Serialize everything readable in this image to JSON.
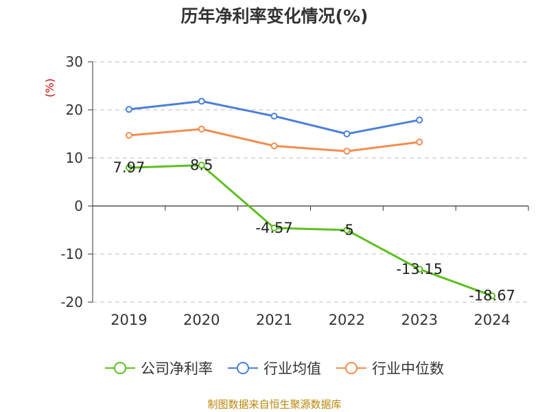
{
  "chart_data": {
    "type": "line",
    "title": "历年净利率变化情况(%)",
    "ylabel": "(%)",
    "ylim": [
      -20,
      30
    ],
    "yticks": [
      30,
      20,
      10,
      0,
      -10,
      -20
    ],
    "categories": [
      "2019",
      "2020",
      "2021",
      "2022",
      "2023",
      "2024"
    ],
    "grid": true,
    "legend_position": "bottom",
    "series": [
      {
        "name": "公司净利率",
        "color": "#5cbf1f",
        "values": [
          7.97,
          8.5,
          -4.57,
          -5,
          -13.15,
          -18.67
        ],
        "labels": [
          "7.97",
          "8.5",
          "-4.57",
          "-5",
          "-13.15",
          "-18.67"
        ]
      },
      {
        "name": "行业均值",
        "color": "#4a7fd9",
        "values": [
          20.1,
          21.8,
          18.7,
          15.0,
          17.9,
          null
        ]
      },
      {
        "name": "行业中位数",
        "color": "#f28c4e",
        "values": [
          14.7,
          16.0,
          12.5,
          11.4,
          13.3,
          null
        ]
      }
    ]
  },
  "source_text": "制图数据来自恒生聚源数据库"
}
